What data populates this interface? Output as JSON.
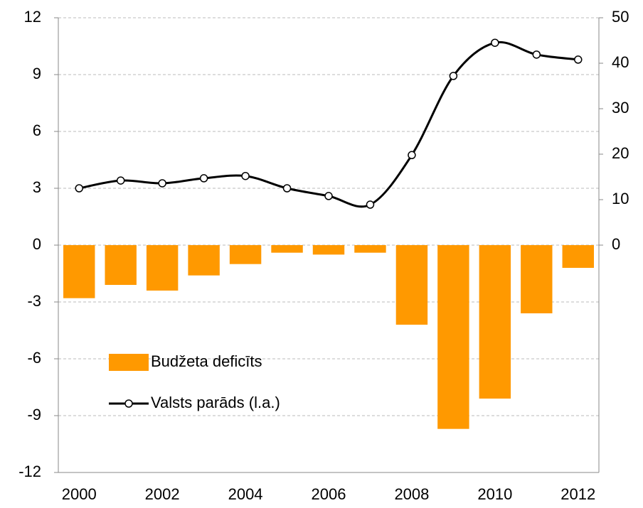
{
  "chart_data": {
    "type": "bar-line",
    "categories": [
      "2000",
      null,
      "2002",
      null,
      "2004",
      null,
      "2006",
      null,
      "2008",
      null,
      "2010",
      null,
      "2012"
    ],
    "series": [
      {
        "name": "Budžeta deficīts",
        "type": "bar",
        "color": "#ff9900",
        "values": [
          -2.8,
          -2.1,
          -2.4,
          -1.6,
          -1.0,
          -0.4,
          -0.5,
          -0.4,
          -4.2,
          -9.7,
          -8.1,
          -3.6,
          -1.2
        ]
      },
      {
        "name": "Valsts parāds (l.a.)",
        "type": "line",
        "axis": "y2",
        "color": "#000000",
        "values": [
          12.5,
          14.2,
          13.6,
          14.7,
          15.2,
          12.5,
          10.8,
          8.9,
          19.8,
          37.2,
          44.5,
          41.9,
          40.8
        ]
      }
    ],
    "ylim": [
      -12,
      12
    ],
    "yticks": [
      -12,
      -9,
      -6,
      -3,
      0,
      3,
      6,
      9,
      12
    ],
    "y2lim": [
      -50,
      50
    ],
    "y2ticks": [
      0,
      10,
      20,
      30,
      40,
      50
    ],
    "grid": true
  }
}
